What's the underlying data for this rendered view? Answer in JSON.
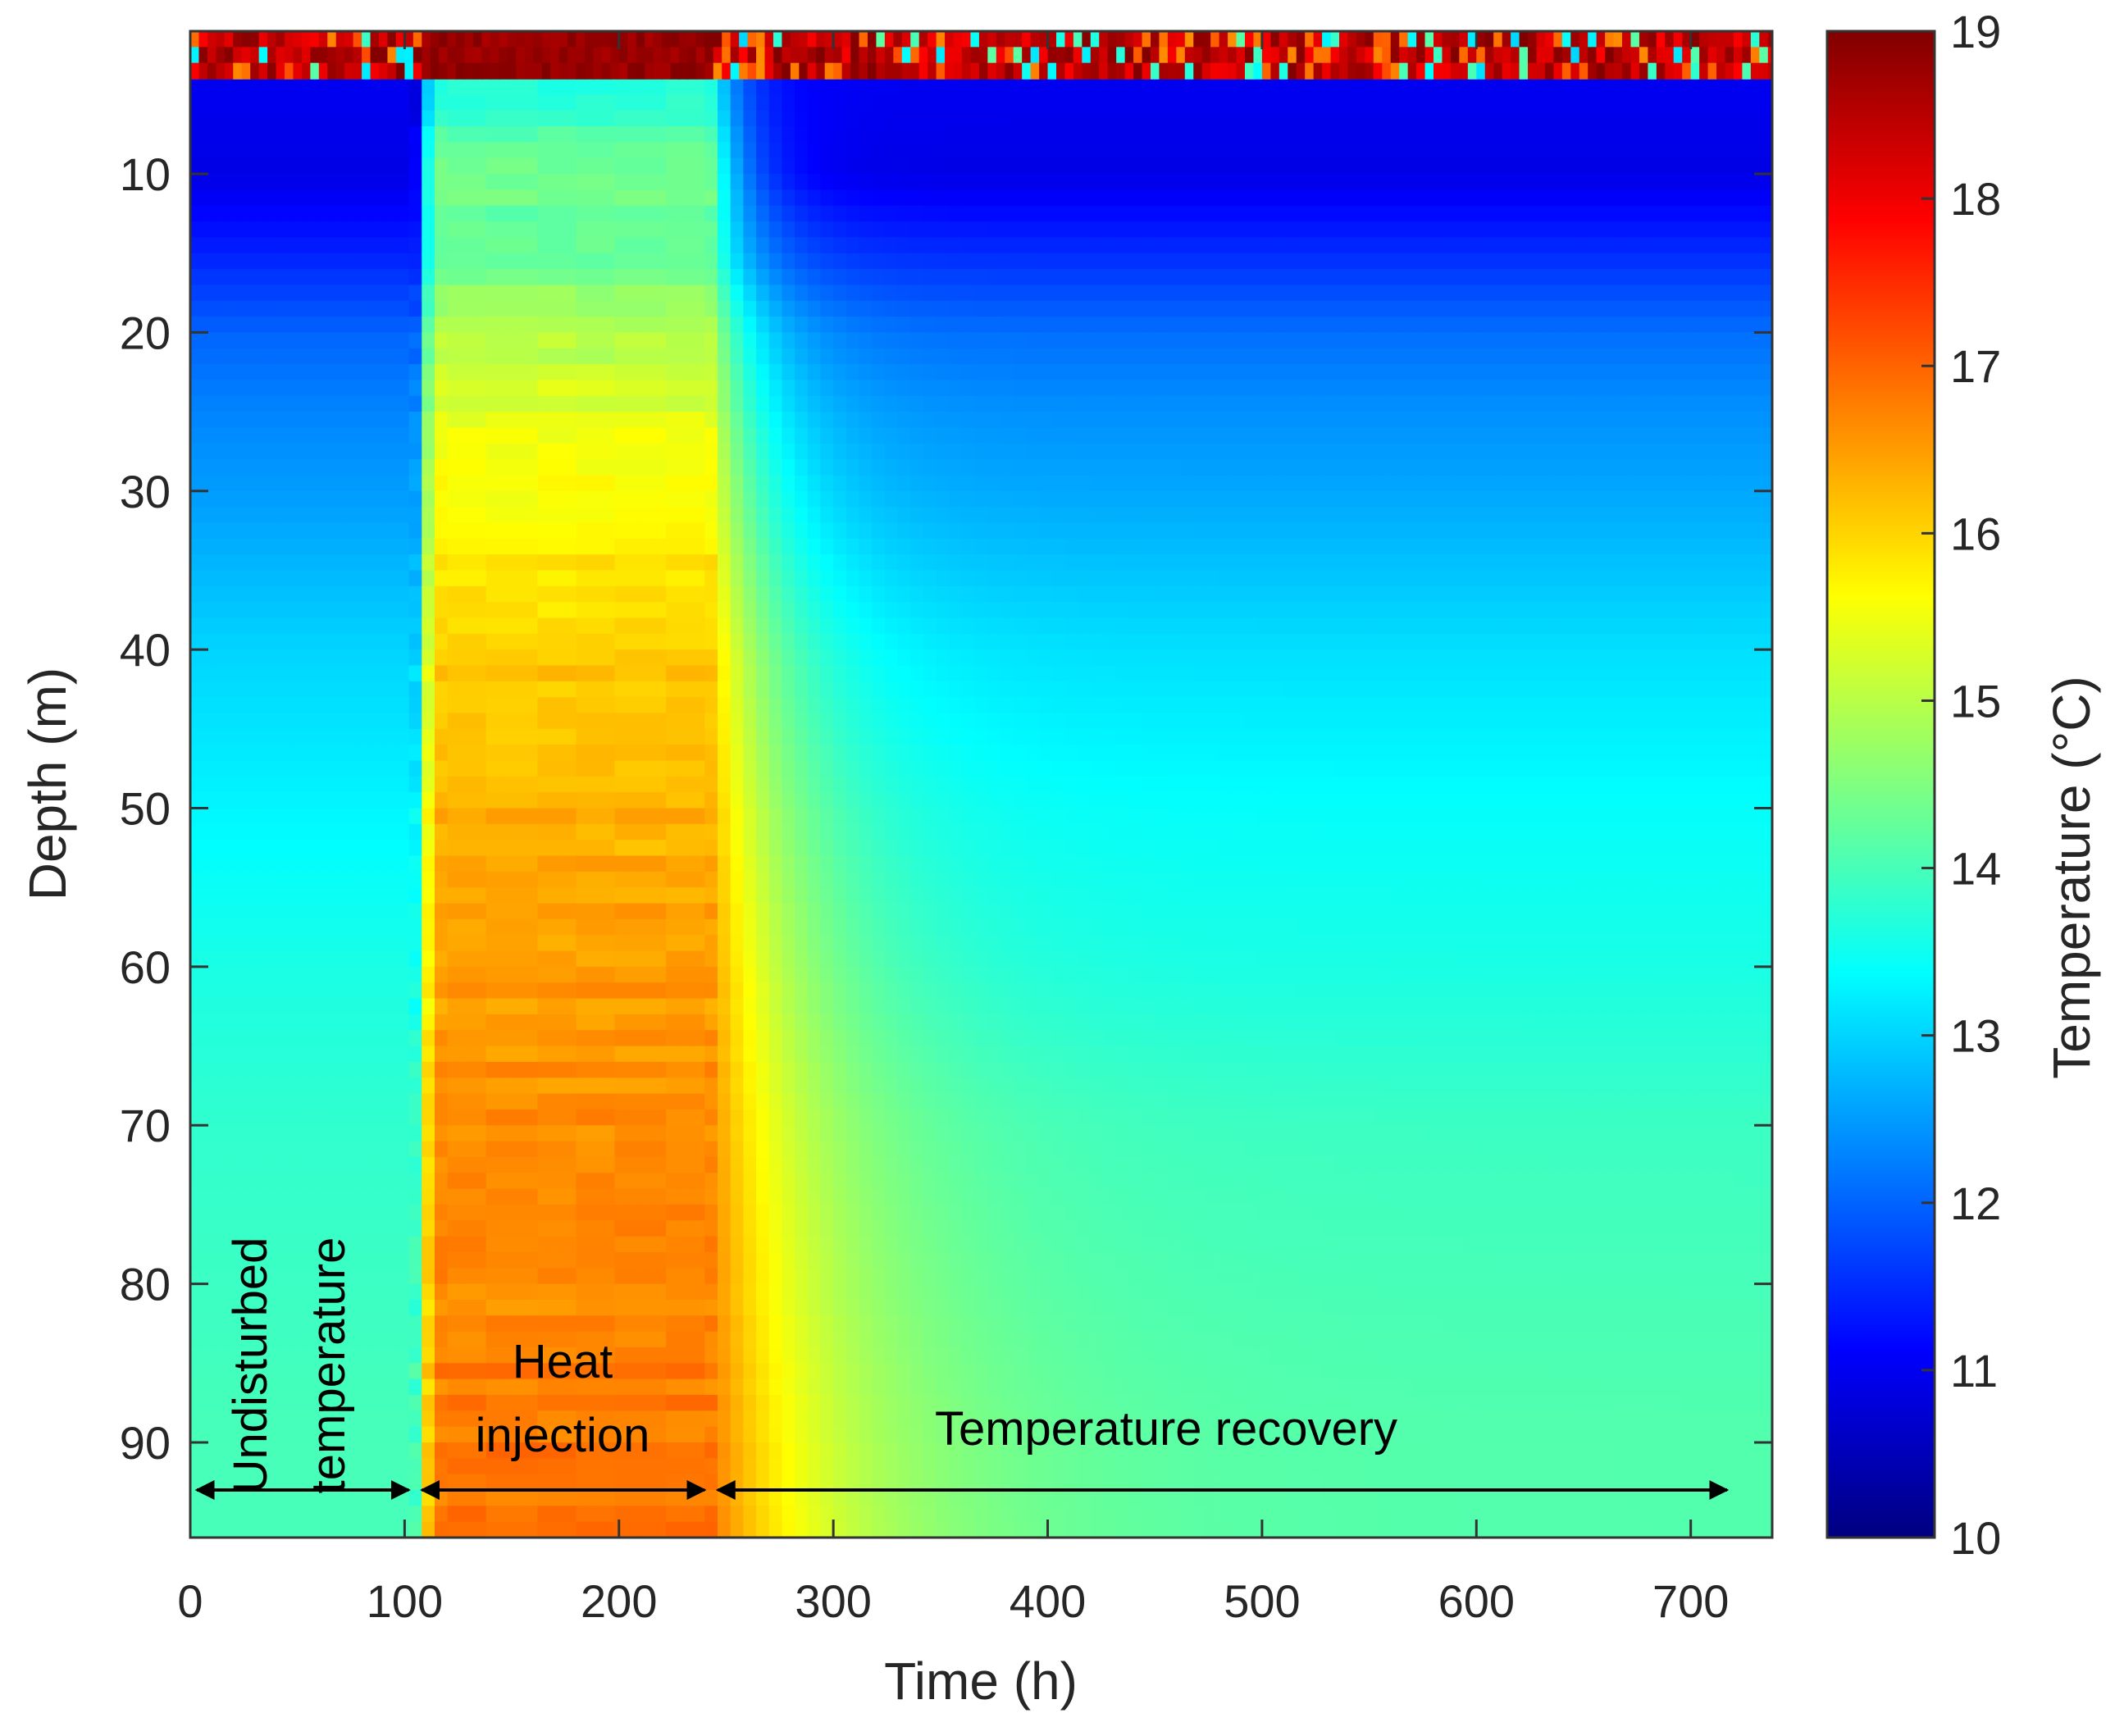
{
  "chart_data": {
    "type": "heatmap",
    "title": "",
    "xlabel": "Time (h)",
    "ylabel": "Depth (m)",
    "colorbar_label": "Temperature (°C)",
    "xlim": [
      0,
      738
    ],
    "ylim": [
      96,
      1
    ],
    "clim": [
      10,
      19
    ],
    "x_ticks": [
      0,
      100,
      200,
      300,
      400,
      500,
      600,
      700
    ],
    "x_tick_labels": [
      "0",
      "100",
      "200",
      "300",
      "400",
      "500",
      "600",
      "700"
    ],
    "y_ticks": [
      10,
      20,
      30,
      40,
      50,
      60,
      70,
      80,
      90
    ],
    "y_tick_labels": [
      "10",
      "20",
      "30",
      "40",
      "50",
      "60",
      "70",
      "80",
      "90"
    ],
    "colorbar_ticks": [
      10,
      11,
      12,
      13,
      14,
      15,
      16,
      17,
      18,
      19
    ],
    "colorbar_tick_labels": [
      "10",
      "11",
      "12",
      "13",
      "14",
      "15",
      "16",
      "17",
      "18",
      "19"
    ],
    "colormap": "jet",
    "phases": [
      {
        "name": "Undisturbed temperature",
        "label_lines": [
          "Undisturbed",
          "temperature"
        ],
        "start_h": 0,
        "end_h": 105
      },
      {
        "name": "Heat injection",
        "label_lines": [
          "Heat",
          "injection"
        ],
        "start_h": 105,
        "end_h": 243
      },
      {
        "name": "Temperature recovery",
        "label_lines": [
          "Temperature recovery"
        ],
        "start_h": 243,
        "end_h": 720
      }
    ],
    "arrow_depth_m": 93,
    "surface_zone": {
      "depth_from_m": 1,
      "depth_to_m": 4,
      "temperature_c": [
        17.5,
        19
      ]
    },
    "temperature_profiles_c": {
      "depth_m": [
        5,
        10,
        15,
        20,
        25,
        30,
        40,
        50,
        60,
        70,
        80,
        90,
        95
      ],
      "undisturbed": [
        11.0,
        10.9,
        11.4,
        12.0,
        12.3,
        12.5,
        13.0,
        13.3,
        13.6,
        13.8,
        13.9,
        14.0,
        14.0
      ],
      "heat_injection": [
        13.8,
        14.3,
        14.2,
        15.0,
        15.3,
        15.6,
        16.1,
        16.3,
        16.5,
        16.6,
        16.7,
        16.8,
        16.8
      ],
      "recovery_end": [
        11.0,
        10.9,
        11.5,
        12.1,
        12.4,
        12.6,
        13.1,
        13.4,
        13.6,
        13.9,
        14.0,
        14.1,
        14.1
      ]
    }
  }
}
